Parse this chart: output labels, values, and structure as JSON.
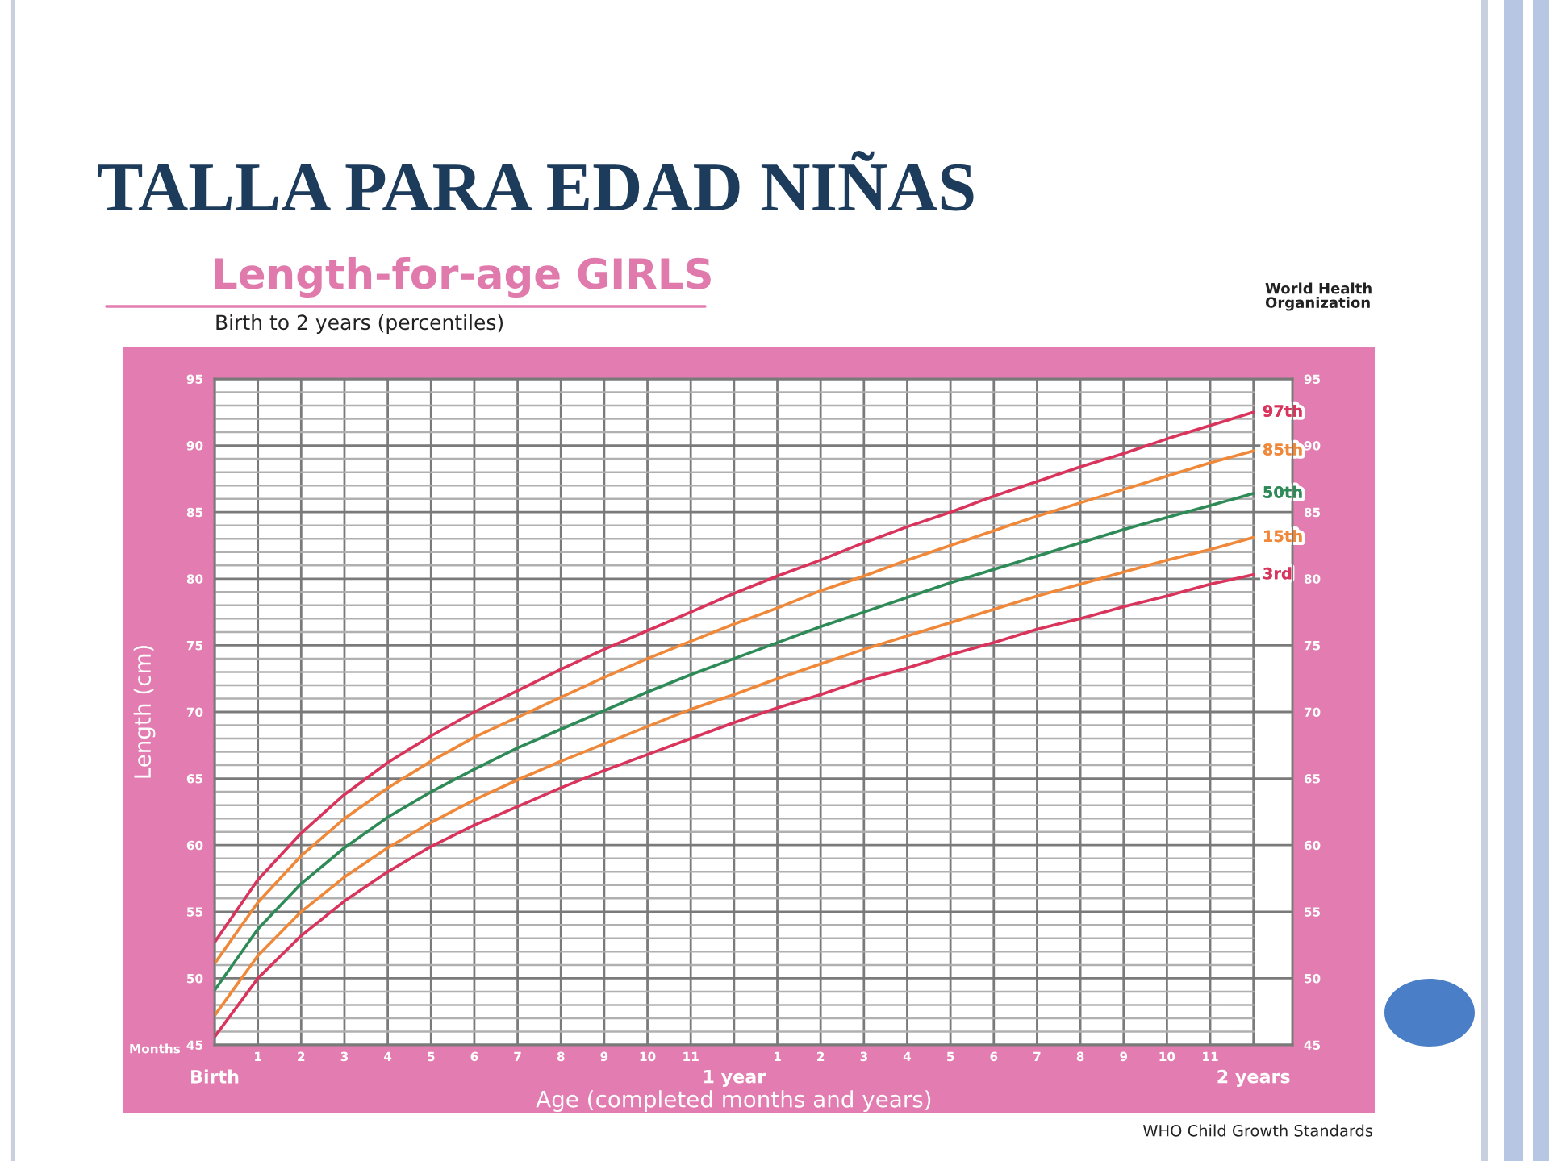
{
  "chart_data": {
    "type": "line",
    "title": "TALLA PARA EDAD NIÑAS",
    "subtitle": "Length-for-age GIRLS",
    "xlabel": "Age (completed months and years)",
    "ylabel": "Length (cm)",
    "annotations": [
      "Birth to 2 years (percentiles)",
      "World Health\nOrganization",
      "Months",
      "WHO Child Growth Standards"
    ],
    "categories": [
      "Birth",
      "1",
      "2",
      "3",
      "4",
      "5",
      "6",
      "7",
      "8",
      "9",
      "10",
      "11",
      "1 year",
      "1",
      "2",
      "3",
      "4",
      "5",
      "6",
      "7",
      "8",
      "9",
      "10",
      "11",
      "2 years"
    ],
    "series": [
      {
        "name": "97th",
        "color": "#d8345c",
        "values": [
          52.7,
          57.4,
          60.9,
          63.8,
          66.2,
          68.2,
          70.0,
          71.6,
          73.2,
          74.7,
          76.1,
          77.5,
          78.9,
          80.2,
          81.4,
          82.7,
          83.9,
          85.0,
          86.2,
          87.3,
          88.4,
          89.4,
          90.5,
          91.5,
          92.5
        ]
      },
      {
        "name": "85th",
        "color": "#f0883a",
        "values": [
          51.1,
          55.7,
          59.2,
          62.0,
          64.3,
          66.3,
          68.1,
          69.6,
          71.1,
          72.6,
          74.0,
          75.3,
          76.6,
          77.8,
          79.1,
          80.2,
          81.4,
          82.5,
          83.6,
          84.7,
          85.7,
          86.7,
          87.7,
          88.7,
          89.6
        ]
      },
      {
        "name": "50th",
        "color": "#2e8b57",
        "values": [
          49.1,
          53.7,
          57.1,
          59.8,
          62.1,
          64.0,
          65.7,
          67.3,
          68.7,
          70.1,
          71.5,
          72.8,
          74.0,
          75.2,
          76.4,
          77.5,
          78.6,
          79.7,
          80.7,
          81.7,
          82.7,
          83.7,
          84.6,
          85.5,
          86.4
        ]
      },
      {
        "name": "15th",
        "color": "#f0883a",
        "values": [
          47.2,
          51.7,
          55.0,
          57.6,
          59.8,
          61.7,
          63.4,
          64.9,
          66.3,
          67.6,
          68.9,
          70.2,
          71.3,
          72.5,
          73.6,
          74.7,
          75.7,
          76.7,
          77.7,
          78.7,
          79.6,
          80.5,
          81.4,
          82.2,
          83.1
        ]
      },
      {
        "name": "3rd",
        "color": "#d8345c",
        "values": [
          45.6,
          50.0,
          53.2,
          55.8,
          58.0,
          59.9,
          61.5,
          62.9,
          64.3,
          65.6,
          66.8,
          68.0,
          69.2,
          70.3,
          71.3,
          72.4,
          73.3,
          74.3,
          75.2,
          76.2,
          77.0,
          77.9,
          78.7,
          79.6,
          80.3
        ]
      }
    ],
    "ylim": [
      45,
      95
    ],
    "yticks": [
      45,
      {
        "value": 46,
        "label": null
      },
      {
        "value": 47,
        "label": null
      },
      {
        "value": 48,
        "label": null
      },
      {
        "value": 49,
        "label": null
      },
      50,
      {
        "value": 51,
        "label": null
      },
      {
        "value": 52,
        "label": null
      },
      {
        "value": 53,
        "label": null
      },
      {
        "value": 54,
        "label": null
      },
      55,
      {
        "value": 56,
        "label": null
      },
      {
        "value": 57,
        "label": null
      },
      {
        "value": 58,
        "label": null
      },
      {
        "value": 59,
        "label": null
      },
      60,
      {
        "value": 61,
        "label": null
      },
      {
        "value": 62,
        "label": null
      },
      {
        "value": 63,
        "label": null
      },
      {
        "value": 64,
        "label": null
      },
      65,
      {
        "value": 66,
        "label": null
      },
      {
        "value": 67,
        "label": null
      },
      {
        "value": 68,
        "label": null
      },
      {
        "value": 69,
        "label": null
      },
      70,
      {
        "value": 71,
        "label": null
      },
      {
        "value": 72,
        "label": null
      },
      {
        "value": 73,
        "label": null
      },
      {
        "value": 74,
        "label": null
      },
      75,
      {
        "value": 76,
        "label": null
      },
      {
        "value": 77,
        "label": null
      },
      {
        "value": 78,
        "label": null
      },
      {
        "value": 79,
        "label": null
      },
      80,
      {
        "value": 81,
        "label": null
      },
      {
        "value": 82,
        "label": null
      },
      {
        "value": 83,
        "label": null
      },
      {
        "value": 84,
        "label": null
      },
      85,
      {
        "value": 86,
        "label": null
      },
      {
        "value": 87,
        "label": null
      },
      {
        "value": 88,
        "label": null
      },
      {
        "value": 89,
        "label": null
      },
      90,
      {
        "value": 91,
        "label": null
      },
      {
        "value": 92,
        "label": null
      },
      {
        "value": 93,
        "label": null
      },
      {
        "value": 94,
        "label": null
      },
      95
    ],
    "y2lim": [
      45,
      95
    ],
    "y2ticks": [
      45,
      50,
      55,
      60,
      65,
      70,
      75,
      80,
      85,
      90,
      95
    ],
    "grid": true
  }
}
